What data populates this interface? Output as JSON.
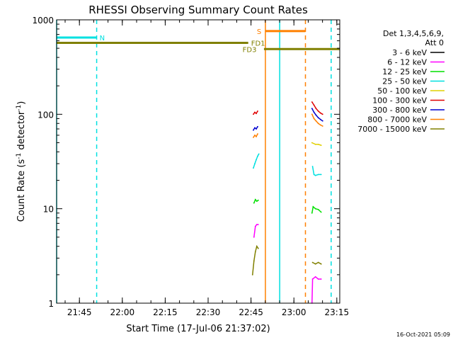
{
  "chart_data": {
    "type": "line",
    "title": "RHESSI Observing Summary Count Rates",
    "xlabel": "Start Time (17-Jul-06 21:37:02)",
    "ylabel_main": "Count Rate (s",
    "ylabel_sup1": "-1",
    "ylabel_mid": " detector",
    "ylabel_sup2": "-1",
    "ylabel_end": ")",
    "y_scale": "log",
    "ylim": [
      1,
      1000
    ],
    "xlim_minutes": [
      0,
      99
    ],
    "x_ticks": [
      {
        "label": "21:45",
        "t": 7.97
      },
      {
        "label": "22:00",
        "t": 22.97
      },
      {
        "label": "22:15",
        "t": 37.97
      },
      {
        "label": "22:30",
        "t": 52.97
      },
      {
        "label": "22:45",
        "t": 67.97
      },
      {
        "label": "23:00",
        "t": 82.97
      },
      {
        "label": "23:15",
        "t": 97.97
      }
    ],
    "y_ticks": [
      {
        "label": "1",
        "v": 1
      },
      {
        "label": "10",
        "v": 10
      },
      {
        "label": "100",
        "v": 100
      },
      {
        "label": "1000",
        "v": 1000
      }
    ],
    "legend": {
      "header1": "Det 1,3,4,5,6,9,",
      "header2": "Att 0",
      "placement": "right",
      "entries": [
        {
          "label": "3 - 6 keV",
          "color": "#000000"
        },
        {
          "label": "6 - 12 keV",
          "color": "#ff00ff"
        },
        {
          "label": "12 - 25 keV",
          "color": "#00e000"
        },
        {
          "label": "25 - 50 keV",
          "color": "#00e0e0"
        },
        {
          "label": "50 - 100 keV",
          "color": "#e0d000"
        },
        {
          "label": "100 - 300 keV",
          "color": "#e00000"
        },
        {
          "label": "300 - 800 keV",
          "color": "#0000d0"
        },
        {
          "label": "800 - 7000 keV",
          "color": "#ff8000"
        },
        {
          "label": "7000 - 15000 keV",
          "color": "#808000"
        }
      ]
    },
    "flags": [
      {
        "label": "N",
        "color": "#00e0e0",
        "y": 650,
        "segments": [
          [
            0,
            14
          ]
        ],
        "label_t": 15
      },
      {
        "label": "S",
        "color": "#ff8000",
        "y": 760,
        "segments": [
          [
            73,
            87
          ]
        ],
        "label_t": 70
      },
      {
        "label": "FD1",
        "color": "#808000",
        "y": 570,
        "segments": [
          [
            0,
            67
          ]
        ],
        "label_t": 68
      },
      {
        "label": "FD3",
        "color": "#808000",
        "y": 490,
        "segments": [
          [
            72.5,
            99
          ]
        ],
        "label_t": 65
      }
    ],
    "night_intervals": [
      [
        0,
        14
      ],
      [
        78,
        96
      ]
    ],
    "vlines": [
      {
        "t": 0,
        "color": "#00e0e0",
        "style": "solid"
      },
      {
        "t": 14,
        "color": "#00e0e0",
        "style": "dashed"
      },
      {
        "t": 73,
        "color": "#ff8000",
        "style": "solid"
      },
      {
        "t": 78,
        "color": "#00e0e0",
        "style": "solid"
      },
      {
        "t": 87,
        "color": "#ff8000",
        "style": "dashed"
      },
      {
        "t": 96,
        "color": "#00e0e0",
        "style": "dashed"
      }
    ],
    "series": [
      {
        "name": "7000 - 15000 keV",
        "color": "#808000",
        "segments": [
          [
            [
              68.5,
              2.0
            ],
            [
              69.0,
              2.8
            ],
            [
              69.5,
              3.5
            ],
            [
              70.0,
              4.0
            ],
            [
              70.5,
              3.8
            ]
          ],
          [
            [
              89.5,
              2.7
            ],
            [
              90.5,
              2.6
            ],
            [
              91.5,
              2.7
            ],
            [
              92.5,
              2.6
            ]
          ]
        ]
      },
      {
        "name": "6 - 12 keV",
        "color": "#ff00ff",
        "segments": [
          [
            [
              69.0,
              5.0
            ],
            [
              69.5,
              6.5
            ],
            [
              70.0,
              6.8
            ],
            [
              70.5,
              6.8
            ]
          ],
          [
            [
              89.3,
              1.0
            ],
            [
              89.5,
              1.8
            ],
            [
              90.5,
              1.9
            ],
            [
              91.5,
              1.8
            ],
            [
              92.5,
              1.8
            ]
          ]
        ]
      },
      {
        "name": "12 - 25 keV",
        "color": "#00e000",
        "segments": [
          [
            [
              69.0,
              11.5
            ],
            [
              69.5,
              12.5
            ],
            [
              70.0,
              12.0
            ],
            [
              70.5,
              12.3
            ]
          ],
          [
            [
              89.3,
              9.0
            ],
            [
              89.7,
              10.5
            ],
            [
              90.5,
              10.0
            ],
            [
              91.5,
              9.8
            ],
            [
              92.5,
              9.2
            ]
          ]
        ]
      },
      {
        "name": "25 - 50 keV",
        "color": "#00e0e0",
        "segments": [
          [
            [
              68.8,
              27.0
            ],
            [
              69.3,
              30.0
            ],
            [
              69.8,
              33.0
            ],
            [
              70.3,
              36.0
            ],
            [
              70.7,
              38.0
            ]
          ],
          [
            [
              89.5,
              28.0
            ],
            [
              90.0,
              23.0
            ],
            [
              90.5,
              22.5
            ],
            [
              91.5,
              23.0
            ],
            [
              92.5,
              23.0
            ]
          ]
        ]
      },
      {
        "name": "50 - 100 keV",
        "color": "#e0d000",
        "segments": [
          [
            [
              89.3,
              50.0
            ],
            [
              90.5,
              48.0
            ],
            [
              91.5,
              48.0
            ],
            [
              92.5,
              47.0
            ]
          ]
        ]
      },
      {
        "name": "800 - 7000 keV",
        "color": "#ff8000",
        "segments": [
          [
            [
              68.8,
              57.0
            ],
            [
              69.3,
              60.0
            ],
            [
              69.8,
              58.0
            ],
            [
              70.3,
              62.0
            ]
          ],
          [
            [
              89.3,
              100.0
            ],
            [
              90.0,
              90.0
            ],
            [
              90.7,
              85.0
            ],
            [
              91.5,
              80.0
            ],
            [
              92.3,
              77.0
            ],
            [
              93.0,
              75.0
            ]
          ]
        ]
      },
      {
        "name": "300 - 800 keV",
        "color": "#0000d0",
        "segments": [
          [
            [
              68.8,
              68.0
            ],
            [
              69.3,
              72.0
            ],
            [
              69.8,
              70.0
            ],
            [
              70.3,
              74.0
            ]
          ],
          [
            [
              89.3,
              115.0
            ],
            [
              90.0,
              105.0
            ],
            [
              90.7,
              98.0
            ],
            [
              91.5,
              92.0
            ],
            [
              92.3,
              88.0
            ],
            [
              93.0,
              85.0
            ]
          ]
        ]
      },
      {
        "name": "100 - 300 keV",
        "color": "#e00000",
        "segments": [
          [
            [
              68.8,
              100.0
            ],
            [
              69.3,
              105.0
            ],
            [
              69.8,
              102.0
            ],
            [
              70.3,
              108.0
            ]
          ],
          [
            [
              89.3,
              135.0
            ],
            [
              90.0,
              125.0
            ],
            [
              90.7,
              115.0
            ],
            [
              91.5,
              108.0
            ],
            [
              92.3,
              103.0
            ],
            [
              93.0,
              100.0
            ]
          ]
        ]
      }
    ]
  },
  "footer": {
    "timestamp": "16-Oct-2021 05:09"
  }
}
